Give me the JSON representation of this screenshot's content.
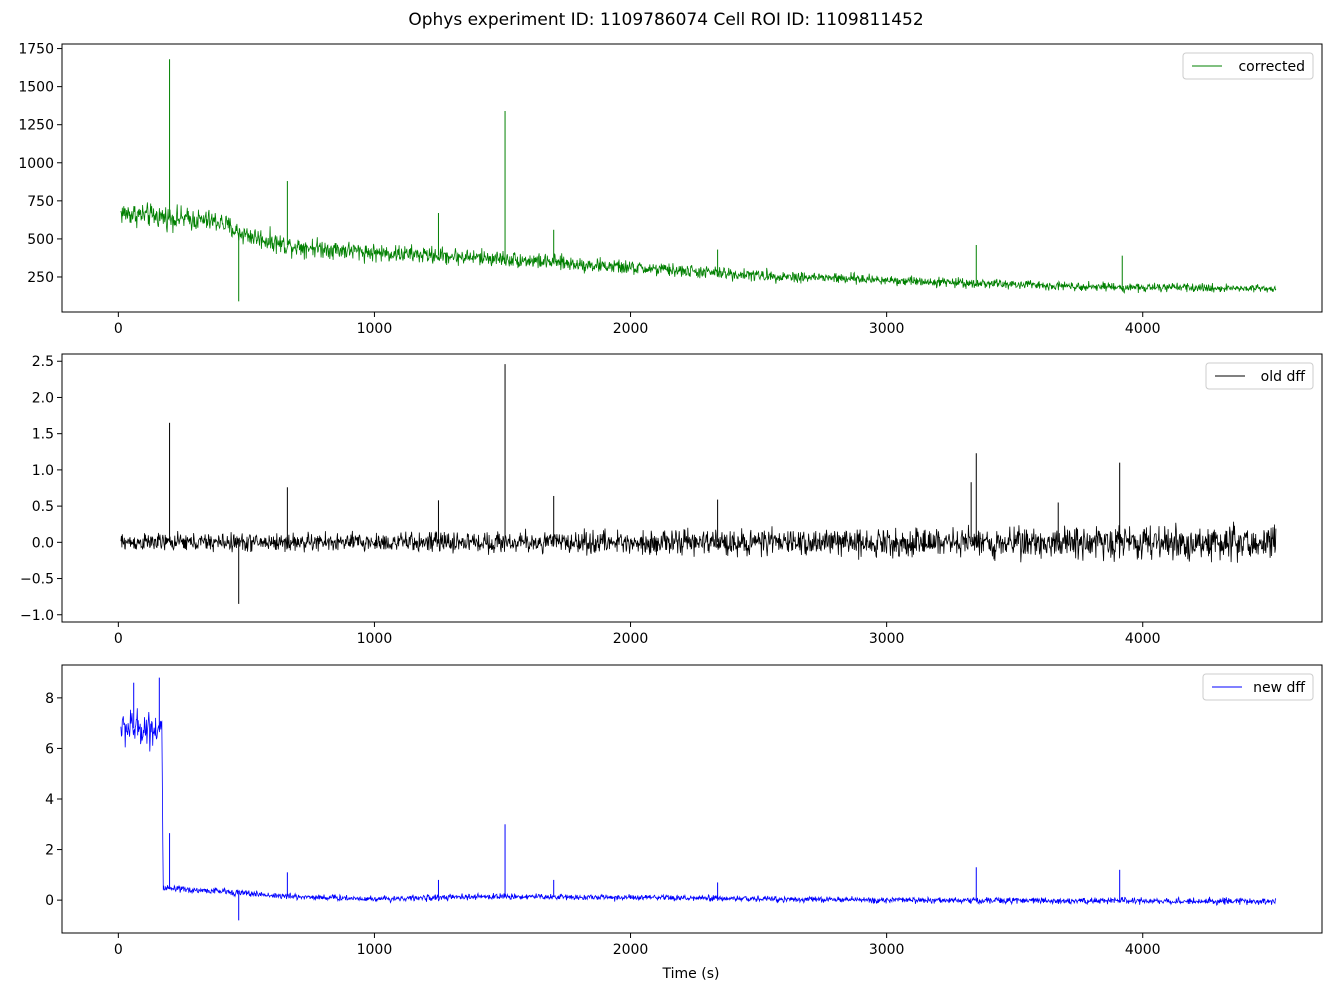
{
  "figure": {
    "title": "Ophys experiment ID: 1109786074  Cell ROI ID: 1109811452",
    "xlabel": "Time (s)"
  },
  "chart_data": [
    {
      "type": "line",
      "series": [
        {
          "name": "corrected",
          "color": "#008000"
        }
      ],
      "xlim": [
        -220,
        4700
      ],
      "ylim": [
        20,
        1780
      ],
      "x_ticks": [
        0,
        1000,
        2000,
        3000,
        4000
      ],
      "y_ticks": [
        250,
        500,
        750,
        1000,
        1250,
        1500,
        1750
      ],
      "legend": "top-right",
      "trace": {
        "x_range": [
          10,
          4520
        ],
        "baseline": [
          [
            10,
            670
          ],
          [
            400,
            610
          ],
          [
            470,
            540
          ],
          [
            650,
            460
          ],
          [
            1000,
            410
          ],
          [
            1500,
            370
          ],
          [
            2000,
            310
          ],
          [
            2500,
            260
          ],
          [
            3000,
            230
          ],
          [
            3500,
            200
          ],
          [
            4000,
            180
          ],
          [
            4520,
            175
          ]
        ],
        "noise": [
          [
            10,
            60
          ],
          [
            1000,
            45
          ],
          [
            2000,
            35
          ],
          [
            3000,
            25
          ],
          [
            4520,
            20
          ]
        ],
        "spikes": [
          [
            200,
            1680
          ],
          [
            470,
            90
          ],
          [
            660,
            880
          ],
          [
            1250,
            670
          ],
          [
            1510,
            1340
          ],
          [
            1700,
            560
          ],
          [
            2340,
            430
          ],
          [
            3350,
            460
          ],
          [
            3920,
            390
          ]
        ]
      }
    },
    {
      "type": "line",
      "series": [
        {
          "name": "old dff",
          "color": "#000000"
        }
      ],
      "xlim": [
        -220,
        4700
      ],
      "ylim": [
        -1.1,
        2.6
      ],
      "x_ticks": [
        0,
        1000,
        2000,
        3000,
        4000
      ],
      "y_ticks": [
        -1.0,
        -0.5,
        0.0,
        0.5,
        1.0,
        1.5,
        2.0,
        2.5
      ],
      "legend": "top-right",
      "trace": {
        "x_range": [
          10,
          4520
        ],
        "baseline": [
          [
            10,
            0.0
          ],
          [
            4520,
            0.0
          ]
        ],
        "noise": [
          [
            10,
            0.09
          ],
          [
            1000,
            0.1
          ],
          [
            2000,
            0.12
          ],
          [
            3000,
            0.14
          ],
          [
            4000,
            0.17
          ],
          [
            4520,
            0.2
          ]
        ],
        "spikes": [
          [
            200,
            1.65
          ],
          [
            470,
            -0.85
          ],
          [
            660,
            0.76
          ],
          [
            1250,
            0.58
          ],
          [
            1510,
            2.46
          ],
          [
            1700,
            0.64
          ],
          [
            2340,
            0.59
          ],
          [
            3330,
            0.83
          ],
          [
            3350,
            1.23
          ],
          [
            3670,
            0.55
          ],
          [
            3910,
            1.1
          ]
        ]
      }
    },
    {
      "type": "line",
      "series": [
        {
          "name": "new dff",
          "color": "#0000ff"
        }
      ],
      "xlim": [
        -220,
        4700
      ],
      "ylim": [
        -1.3,
        9.3
      ],
      "x_ticks": [
        0,
        1000,
        2000,
        3000,
        4000
      ],
      "y_ticks": [
        0,
        2,
        4,
        6,
        8
      ],
      "legend": "top-right",
      "trace": {
        "x_range": [
          10,
          4520
        ],
        "baseline": [
          [
            10,
            6.8
          ],
          [
            170,
            6.8
          ],
          [
            175,
            0.45
          ],
          [
            400,
            0.35
          ],
          [
            650,
            0.15
          ],
          [
            1000,
            0.05
          ],
          [
            1500,
            0.15
          ],
          [
            2000,
            0.1
          ],
          [
            3000,
            0.0
          ],
          [
            4520,
            -0.05
          ]
        ],
        "noise": [
          [
            10,
            0.55
          ],
          [
            170,
            0.55
          ],
          [
            175,
            0.1
          ],
          [
            1000,
            0.09
          ],
          [
            3000,
            0.09
          ],
          [
            4520,
            0.1
          ]
        ],
        "spikes": [
          [
            60,
            8.6
          ],
          [
            160,
            8.8
          ],
          [
            200,
            2.65
          ],
          [
            470,
            -0.8
          ],
          [
            660,
            1.1
          ],
          [
            1250,
            0.8
          ],
          [
            1510,
            3.0
          ],
          [
            1700,
            0.8
          ],
          [
            2340,
            0.7
          ],
          [
            3350,
            1.3
          ],
          [
            3910,
            1.2
          ]
        ]
      }
    }
  ]
}
